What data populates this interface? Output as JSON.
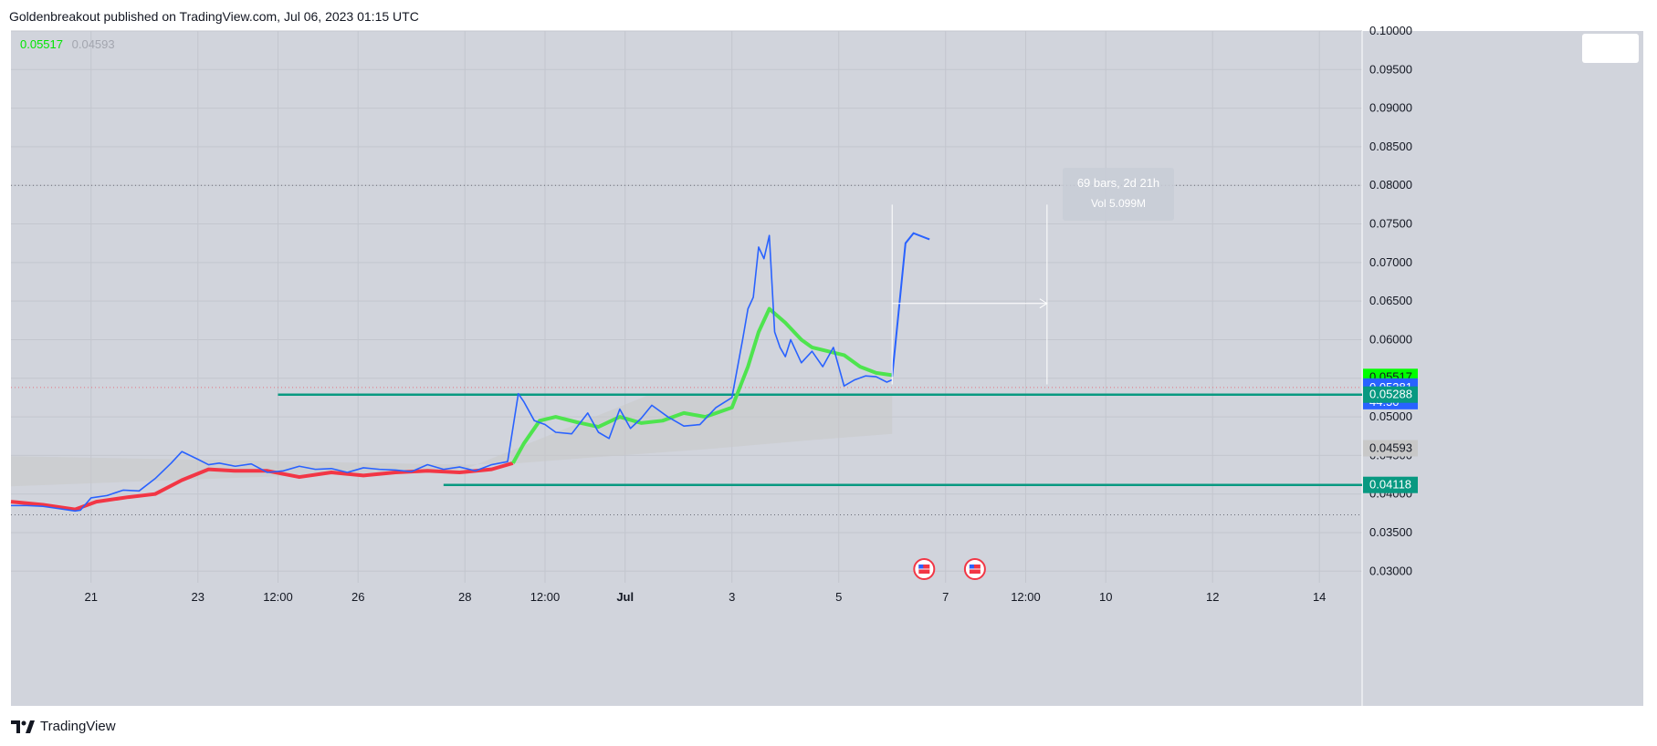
{
  "header": {
    "text": "Goldenbreakout published on TradingView.com, Jul 06, 2023 01:15 UTC"
  },
  "footer": {
    "logo_text": "TradingView"
  },
  "legend": {
    "value1": "0.05517",
    "value2": "0.04593"
  },
  "measure": {
    "line1": "69 bars, 2d 21h",
    "line2": "Vol 5.099M"
  },
  "price_labels": [
    {
      "text": "0.05517",
      "value": 0.05517,
      "bg": "#00ff00",
      "fg": "#131722"
    },
    {
      "text": "0.05381",
      "value": 0.05381,
      "bg": "#2962ff",
      "fg": "#ffffff",
      "sub": "44:50"
    },
    {
      "text": "0.05288",
      "value": 0.05288,
      "bg": "#089981",
      "fg": "#ffffff"
    },
    {
      "text": "0.04593",
      "value": 0.04593,
      "bg": "#c8c8c8",
      "fg": "#131722"
    },
    {
      "text": "0.04118",
      "value": 0.04118,
      "bg": "#089981",
      "fg": "#ffffff"
    }
  ],
  "colors": {
    "price_line": "#2962ff",
    "ma_down": "#f23645",
    "ma_up": "#4ee44e",
    "level": "#089981",
    "background": "#d1d4dc"
  },
  "chart_data": {
    "type": "line",
    "ylim": [
      0.0285,
      0.1
    ],
    "y_ticks": [
      "0.03000",
      "0.03500",
      "0.04000",
      "0.04500",
      "0.05000",
      "0.05500",
      "0.06000",
      "0.06500",
      "0.07000",
      "0.07500",
      "0.08000",
      "0.08500",
      "0.09000",
      "0.09500",
      "0.10000"
    ],
    "y_tick_values": [
      0.03,
      0.035,
      0.04,
      0.045,
      0.05,
      0.055,
      0.06,
      0.065,
      0.07,
      0.075,
      0.08,
      0.085,
      0.09,
      0.095,
      0.1
    ],
    "x_ticks": [
      "21",
      "23",
      "12:00",
      "26",
      "28",
      "12:00",
      "Jul",
      "3",
      "5",
      "7",
      "12:00",
      "10",
      "12",
      "14"
    ],
    "x_tick_pos": [
      1.5,
      3.5,
      5,
      6.5,
      8.5,
      10,
      11.5,
      13.5,
      15.5,
      17.5,
      19,
      20.5,
      22.5,
      24.5
    ],
    "xlim": [
      0,
      25.3
    ],
    "price_series": {
      "name": "",
      "x": [
        0,
        0.3,
        0.6,
        0.9,
        1.2,
        1.3,
        1.5,
        1.8,
        2.1,
        2.4,
        2.7,
        3.0,
        3.2,
        3.5,
        3.7,
        3.9,
        4.2,
        4.5,
        4.8,
        5.1,
        5.4,
        5.7,
        6.0,
        6.3,
        6.6,
        6.9,
        7.2,
        7.5,
        7.8,
        8.1,
        8.4,
        8.7,
        9.0,
        9.3,
        9.5,
        9.6,
        9.8,
        10.0,
        10.2,
        10.5,
        10.8,
        11.0,
        11.2,
        11.4,
        11.6,
        11.8,
        12.0,
        12.3,
        12.6,
        12.9,
        13.2,
        13.5,
        13.7,
        13.8,
        13.9,
        14.0,
        14.1,
        14.2,
        14.3,
        14.4,
        14.5,
        14.6,
        14.8,
        15.0,
        15.2,
        15.4,
        15.6,
        15.8,
        16.0,
        16.2,
        16.4,
        16.5
      ],
      "y": [
        0.0385,
        0.0385,
        0.0384,
        0.0381,
        0.0378,
        0.0379,
        0.0395,
        0.0398,
        0.0405,
        0.0404,
        0.042,
        0.044,
        0.0455,
        0.0445,
        0.0438,
        0.044,
        0.0436,
        0.0439,
        0.0428,
        0.043,
        0.0436,
        0.0432,
        0.0433,
        0.0428,
        0.0434,
        0.0432,
        0.0431,
        0.0429,
        0.0438,
        0.0432,
        0.0435,
        0.043,
        0.0438,
        0.0442,
        0.053,
        0.052,
        0.0495,
        0.049,
        0.048,
        0.0478,
        0.0505,
        0.048,
        0.0472,
        0.051,
        0.0485,
        0.0498,
        0.0515,
        0.05,
        0.0488,
        0.049,
        0.0512,
        0.0525,
        0.06,
        0.064,
        0.0655,
        0.072,
        0.0705,
        0.0735,
        0.061,
        0.059,
        0.0578,
        0.06,
        0.057,
        0.0585,
        0.0565,
        0.059,
        0.054,
        0.0548,
        0.0553,
        0.0552,
        0.0545,
        0.0548
      ]
    },
    "ma_series": {
      "name": "",
      "x": [
        0,
        0.6,
        1.2,
        1.6,
        2.2,
        2.7,
        3.2,
        3.7,
        4.2,
        4.8,
        5.4,
        6.0,
        6.6,
        7.2,
        7.8,
        8.4,
        9.0,
        9.4,
        9.6,
        9.9,
        10.2,
        10.6,
        11.0,
        11.4,
        11.8,
        12.2,
        12.6,
        13.0,
        13.5,
        13.8,
        14.0,
        14.2,
        14.5,
        14.8,
        15.0,
        15.3,
        15.6,
        15.9,
        16.2,
        16.5
      ],
      "y": [
        0.039,
        0.0386,
        0.038,
        0.039,
        0.0396,
        0.04,
        0.0418,
        0.0432,
        0.043,
        0.043,
        0.0422,
        0.0428,
        0.0424,
        0.0428,
        0.043,
        0.0428,
        0.0432,
        0.044,
        0.0465,
        0.0495,
        0.05,
        0.0493,
        0.0487,
        0.05,
        0.0492,
        0.0495,
        0.0505,
        0.05,
        0.0512,
        0.0565,
        0.061,
        0.064,
        0.0622,
        0.06,
        0.059,
        0.0585,
        0.058,
        0.0565,
        0.0557,
        0.0554
      ],
      "turn_x": 9.4
    },
    "projection": {
      "x": [
        16.5,
        16.75,
        16.9,
        17.2
      ],
      "y": [
        0.0552,
        0.0725,
        0.0738,
        0.073
      ]
    },
    "levels": [
      {
        "value": 0.05288,
        "x_start": 5.0
      },
      {
        "value": 0.04118,
        "x_start": 8.1
      }
    ],
    "dotted_lines": [
      0.08,
      0.0373
    ],
    "measure_range": {
      "x1": 16.5,
      "x2": 19.4,
      "y_arrow": 0.0647,
      "y_top": 0.0775,
      "y_bottom": 0.0542
    },
    "shaded_region": {
      "x": [
        0,
        8.5,
        9.5,
        11.0,
        13.0,
        15.0,
        16.5,
        16.5,
        12.0,
        8.5,
        0
      ],
      "y": [
        0.0449,
        0.0438,
        0.044,
        0.0448,
        0.0458,
        0.047,
        0.0478,
        0.053,
        0.053,
        0.0432,
        0.041
      ]
    },
    "events_x": [
      17.1,
      18.05
    ]
  }
}
